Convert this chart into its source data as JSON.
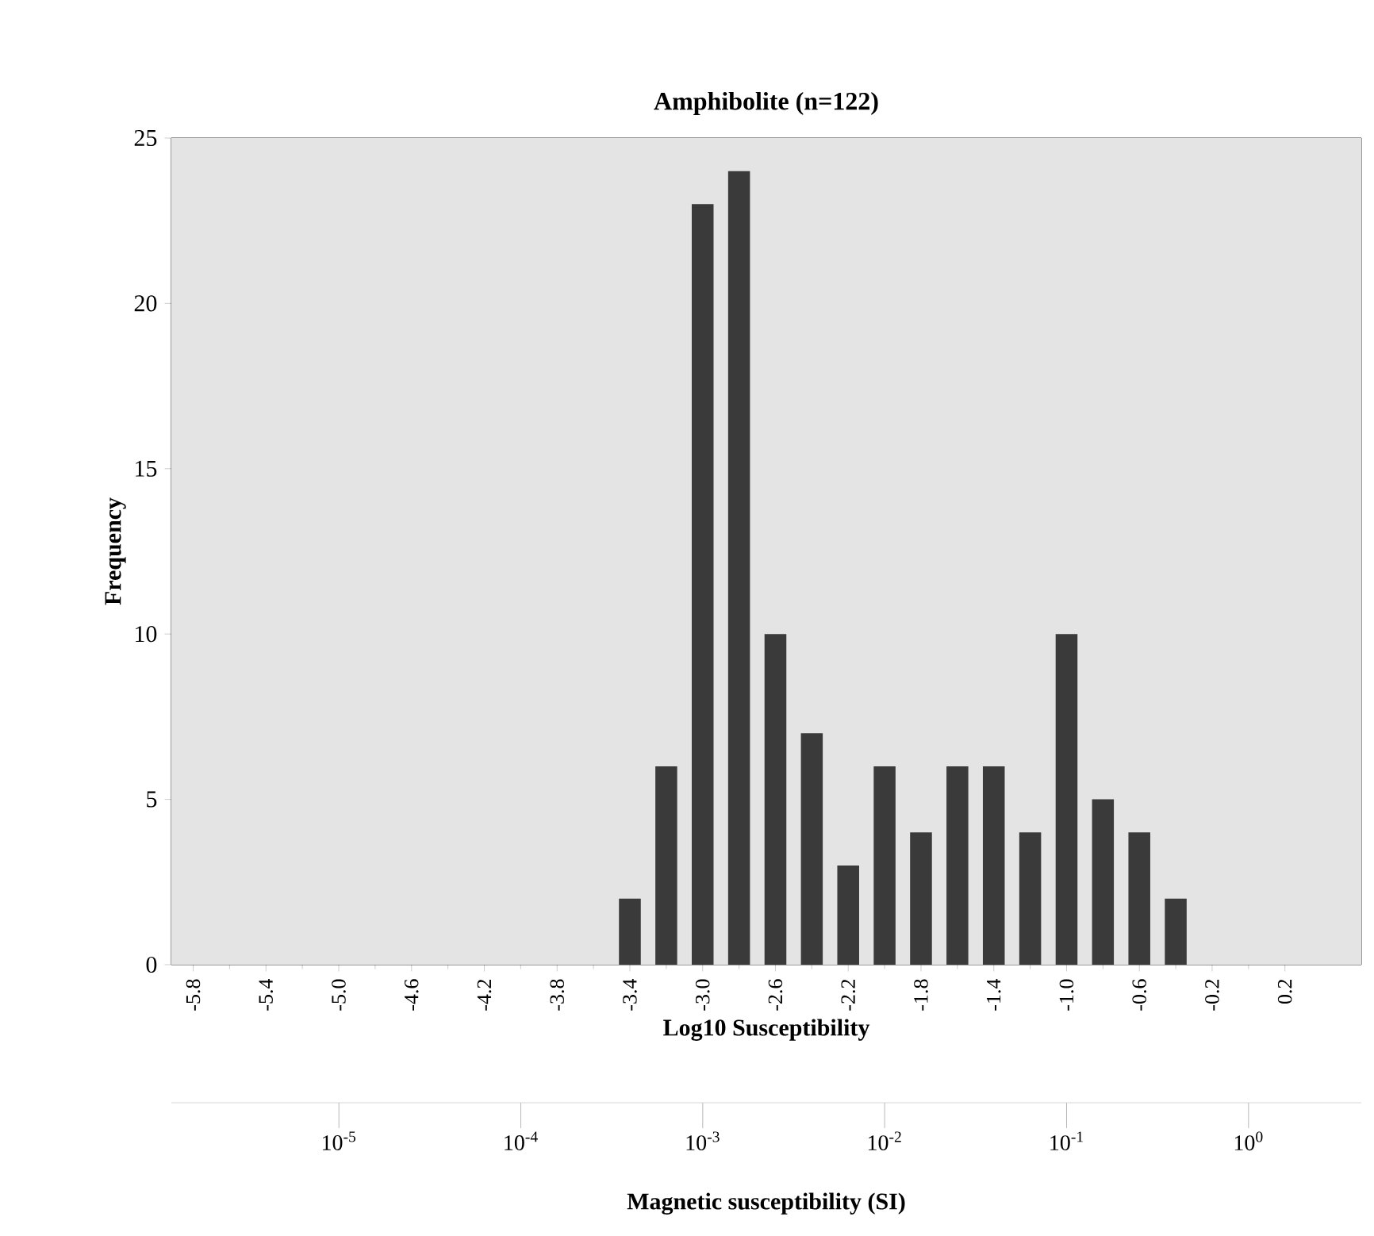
{
  "chart_data": {
    "type": "bar",
    "title": "Amphibolite (n=122)",
    "xlabel": "Log10 Susceptibility",
    "ylabel": "Frequency",
    "x2label": "Magnetic susceptibility (SI)",
    "x": [
      -3.4,
      -3.2,
      -3.0,
      -2.8,
      -2.6,
      -2.4,
      -2.2,
      -2.0,
      -1.8,
      -1.6,
      -1.4,
      -1.2,
      -1.0,
      -0.8,
      -0.6,
      -0.4
    ],
    "values": [
      2,
      6,
      23,
      24,
      10,
      7,
      3,
      6,
      4,
      6,
      6,
      4,
      10,
      5,
      4,
      2
    ],
    "color": "#3a3a3a",
    "xlim": [
      -5.92,
      0.62
    ],
    "xticks": [
      -5.8,
      -5.4,
      {
        "value": -5,
        "label": "-5.0"
      },
      -4.6,
      -4.2,
      -3.8,
      -3.4,
      {
        "value": -3,
        "label": "-3.0"
      },
      -2.6,
      -2.2,
      -1.8,
      -1.4,
      {
        "value": -1,
        "label": "-1.0"
      },
      -0.6,
      -0.2,
      0.2
    ],
    "x2lim": [
      1.2e-06,
      4.17
    ],
    "log": "x2",
    "x2ticks": [
      {
        "value": 1e-05,
        "label": "10$^{-5}$"
      },
      {
        "value": 0.0001,
        "label": "10$^{-4}$"
      },
      {
        "value": 0.001,
        "label": "10$^{-3}$"
      },
      {
        "value": 0.01,
        "label": "10$^{-2}$"
      },
      {
        "value": 0.1,
        "label": "10$^{-1}$"
      },
      {
        "value": 1,
        "label": "10$^{0}$"
      }
    ],
    "ylim": [
      0,
      25
    ],
    "yticks": [
      0,
      5,
      10,
      15,
      20,
      25
    ]
  }
}
